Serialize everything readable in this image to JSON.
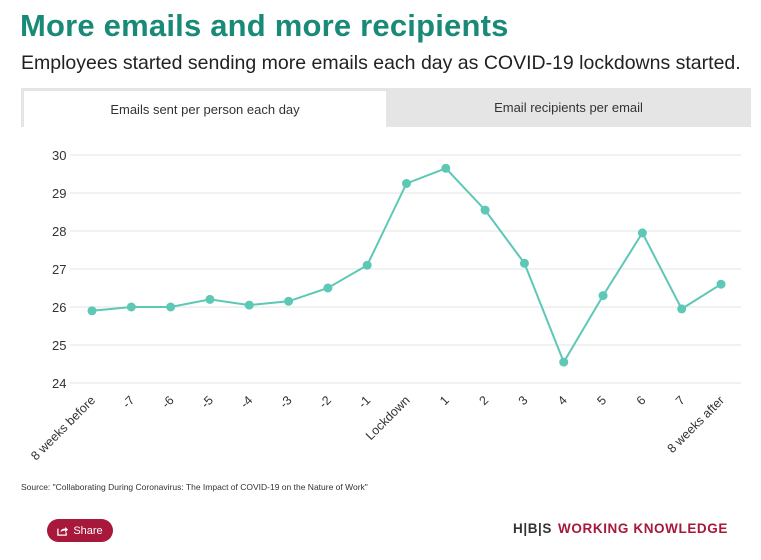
{
  "header": {
    "title": "More emails and more recipients",
    "subtitle": "Employees started sending more emails each day as COVID-19 lockdowns started."
  },
  "tabs": [
    {
      "label": "Emails sent per person each day",
      "active": true
    },
    {
      "label": "Email recipients per email",
      "active": false
    }
  ],
  "chart_data": {
    "type": "line",
    "categories": [
      "8 weeks before",
      "-7",
      "-6",
      "-5",
      "-4",
      "-3",
      "-2",
      "-1",
      "Lockdown",
      "1",
      "2",
      "3",
      "4",
      "5",
      "6",
      "7",
      "8 weeks after"
    ],
    "values": [
      25.9,
      26.0,
      26.0,
      26.2,
      26.05,
      26.15,
      26.5,
      27.1,
      29.25,
      29.65,
      28.55,
      27.15,
      24.55,
      26.3,
      27.95,
      25.95,
      26.6
    ],
    "yticks": [
      24,
      25,
      26,
      27,
      28,
      29,
      30
    ],
    "ylim": [
      24,
      30
    ],
    "grid": true,
    "color": "#5cc8b5"
  },
  "footer": {
    "source": "Source: \"Collaborating During Coronavirus: The Impact of COVID-19 on the Nature of Work\"",
    "share_label": "Share",
    "brand_hbs": "H|B|S",
    "brand_wk": "WORKING KNOWLEDGE"
  }
}
